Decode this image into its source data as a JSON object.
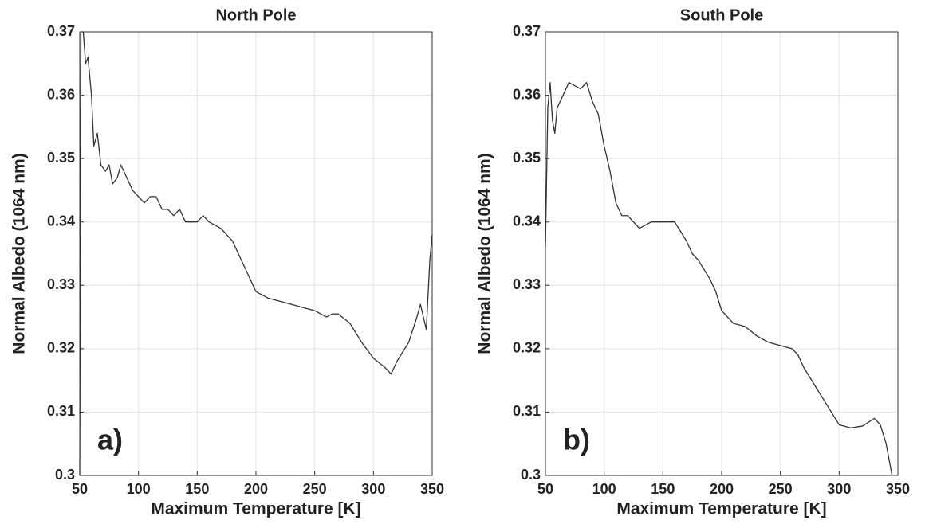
{
  "chart_data": [
    {
      "type": "line",
      "title": "North Pole",
      "xlabel": "Maximum Temperature [K]",
      "ylabel": "Normal Albedo (1064 nm)",
      "panel_label": "a)",
      "xlim": [
        50,
        350
      ],
      "ylim": [
        0.3,
        0.37
      ],
      "xticks": [
        50,
        100,
        150,
        200,
        250,
        300,
        350
      ],
      "yticks": [
        0.3,
        0.31,
        0.32,
        0.33,
        0.34,
        0.35,
        0.36,
        0.37
      ],
      "grid": true,
      "color": "#333333",
      "x": [
        50,
        51,
        53,
        55,
        57,
        60,
        62,
        65,
        68,
        72,
        75,
        78,
        82,
        85,
        90,
        95,
        100,
        105,
        110,
        115,
        120,
        125,
        130,
        135,
        140,
        150,
        155,
        160,
        170,
        180,
        185,
        190,
        200,
        210,
        220,
        230,
        240,
        250,
        260,
        265,
        270,
        280,
        290,
        300,
        310,
        315,
        320,
        330,
        337,
        340,
        345,
        348,
        350
      ],
      "values": [
        0.3,
        0.37,
        0.37,
        0.365,
        0.366,
        0.36,
        0.352,
        0.354,
        0.349,
        0.348,
        0.349,
        0.346,
        0.347,
        0.349,
        0.347,
        0.345,
        0.344,
        0.343,
        0.344,
        0.344,
        0.342,
        0.342,
        0.341,
        0.342,
        0.34,
        0.34,
        0.341,
        0.34,
        0.339,
        0.337,
        0.335,
        0.333,
        0.329,
        0.328,
        0.3275,
        0.327,
        0.3265,
        0.326,
        0.325,
        0.3255,
        0.3255,
        0.324,
        0.321,
        0.3185,
        0.317,
        0.316,
        0.318,
        0.321,
        0.325,
        0.327,
        0.323,
        0.334,
        0.338
      ]
    },
    {
      "type": "line",
      "title": "South Pole",
      "xlabel": "Maximum Temperature [K]",
      "ylabel": "Normal Albedo (1064 nm)",
      "panel_label": "b)",
      "xlim": [
        50,
        350
      ],
      "ylim": [
        0.3,
        0.37
      ],
      "xticks": [
        50,
        100,
        150,
        200,
        250,
        300,
        350
      ],
      "yticks": [
        0.3,
        0.31,
        0.32,
        0.33,
        0.34,
        0.35,
        0.36,
        0.37
      ],
      "grid": true,
      "color": "#333333",
      "x": [
        50,
        52,
        54,
        56,
        58,
        60,
        65,
        70,
        75,
        80,
        85,
        90,
        95,
        100,
        105,
        110,
        115,
        120,
        130,
        140,
        150,
        160,
        170,
        175,
        180,
        190,
        195,
        200,
        210,
        220,
        230,
        240,
        250,
        260,
        265,
        270,
        280,
        290,
        300,
        310,
        320,
        330,
        335,
        340,
        345
      ],
      "values": [
        0.336,
        0.358,
        0.362,
        0.356,
        0.354,
        0.358,
        0.36,
        0.362,
        0.3615,
        0.361,
        0.362,
        0.359,
        0.357,
        0.352,
        0.348,
        0.343,
        0.341,
        0.341,
        0.339,
        0.34,
        0.34,
        0.34,
        0.337,
        0.335,
        0.334,
        0.331,
        0.329,
        0.326,
        0.324,
        0.3235,
        0.322,
        0.321,
        0.3205,
        0.32,
        0.319,
        0.317,
        0.314,
        0.311,
        0.308,
        0.3075,
        0.3078,
        0.309,
        0.308,
        0.305,
        0.3
      ]
    }
  ]
}
